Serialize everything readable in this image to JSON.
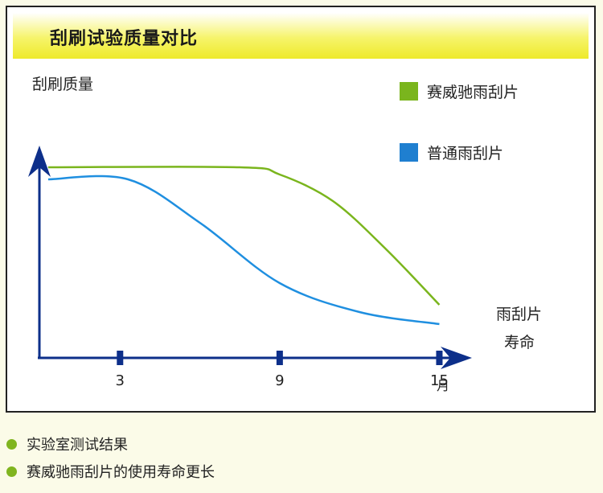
{
  "title": "刮刷试验质量对比",
  "chart_data": {
    "type": "line",
    "ylabel": "刮刷质量",
    "xlabel_line1": "雨刮片",
    "xlabel_line2": "寿命",
    "x_unit": "月",
    "xticks": [
      "3",
      "9",
      "15"
    ],
    "x_range": [
      0,
      15.5
    ],
    "y_range": [
      0,
      1
    ],
    "grid": false,
    "legend_position": "top-right",
    "series": [
      {
        "name": "赛威驰雨刮片",
        "color": "#7ab51d",
        "x": [
          0.3,
          7.5,
          9,
          11,
          13,
          15
        ],
        "y": [
          0.79,
          0.79,
          0.76,
          0.65,
          0.45,
          0.22
        ]
      },
      {
        "name": "普通雨刮片",
        "color": "#1f8fe0",
        "x": [
          0.3,
          3.3,
          6,
          9,
          12,
          15
        ],
        "y": [
          0.74,
          0.74,
          0.56,
          0.31,
          0.19,
          0.14
        ]
      }
    ]
  },
  "notes": [
    "实验室测试结果",
    "赛威驰雨刮片的使用寿命更长"
  ],
  "colors": {
    "axis": "#0d2f8a",
    "bullet": "#80b51f",
    "title_band": "#f0ec2e"
  }
}
